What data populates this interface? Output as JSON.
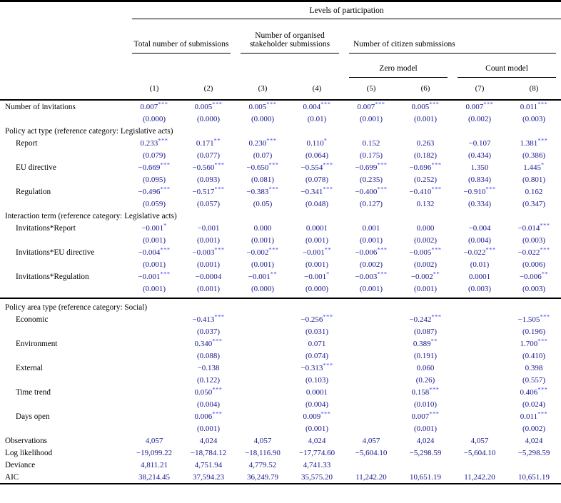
{
  "header": {
    "top_title": "Levels of participation",
    "groups": [
      {
        "label": "Total number of submissions"
      },
      {
        "label": "Number of organised stakeholder submissions"
      },
      {
        "label": "Number of citizen submissions"
      }
    ],
    "subgroups": [
      {
        "label": "Zero model"
      },
      {
        "label": "Count model"
      }
    ],
    "column_numbers": [
      "(1)",
      "(2)",
      "(3)",
      "(4)",
      "(5)",
      "(6)",
      "(7)",
      "(8)"
    ]
  },
  "colors": {
    "value_text": "#15158e",
    "stars": "#4343ff",
    "label_text": "#000000",
    "rule": "#000000"
  },
  "rows": [
    {
      "type": "coef",
      "label": "Number of invitations",
      "indent": false,
      "cells": [
        {
          "v": "0.007",
          "s": "***"
        },
        {
          "v": "0.005",
          "s": "***"
        },
        {
          "v": "0.005",
          "s": "***"
        },
        {
          "v": "0.004",
          "s": "***"
        },
        {
          "v": "0.007",
          "s": "***"
        },
        {
          "v": "0.005",
          "s": "***"
        },
        {
          "v": "0.007",
          "s": "***"
        },
        {
          "v": "0.011",
          "s": "***"
        }
      ]
    },
    {
      "type": "se",
      "cells": [
        "(0.000)",
        "(0.000)",
        "(0.000)",
        "(0.01)",
        "(0.001)",
        "(0.001)",
        "(0.002)",
        "(0.003)"
      ]
    },
    {
      "type": "section",
      "label": "Policy act type (reference category: Legislative acts)"
    },
    {
      "type": "coef",
      "label": "Report",
      "indent": true,
      "cells": [
        {
          "v": "0.233",
          "s": "***"
        },
        {
          "v": "0.171",
          "s": "**"
        },
        {
          "v": "0.230",
          "s": "***"
        },
        {
          "v": "0.110",
          "s": "*"
        },
        {
          "v": "0.152"
        },
        {
          "v": "0.263"
        },
        {
          "v": "−0.107"
        },
        {
          "v": "1.381",
          "s": "***"
        }
      ]
    },
    {
      "type": "se",
      "cells": [
        "(0.079)",
        "(0.077)",
        "(0.07)",
        "(0.064)",
        "(0.175)",
        "(0.182)",
        "(0.434)",
        "(0.386)"
      ]
    },
    {
      "type": "coef",
      "label": "EU directive",
      "indent": true,
      "cells": [
        {
          "v": "−0.669",
          "s": "***"
        },
        {
          "v": "−0.560",
          "s": "***"
        },
        {
          "v": "−0.650",
          "s": "***"
        },
        {
          "v": "−0.554",
          "s": "***"
        },
        {
          "v": "−0.699",
          "s": "***"
        },
        {
          "v": "−0.696",
          "s": "***"
        },
        {
          "v": "1.350"
        },
        {
          "v": "1.445",
          "s": "*"
        }
      ]
    },
    {
      "type": "se",
      "cells": [
        "(0.095)",
        "(0.093)",
        "(0.081)",
        "(0.078)",
        "(0.235)",
        "(0.252)",
        "(0.834)",
        "(0.801)"
      ]
    },
    {
      "type": "coef",
      "label": "Regulation",
      "indent": true,
      "cells": [
        {
          "v": "−0.496",
          "s": "***"
        },
        {
          "v": "−0.517",
          "s": "***"
        },
        {
          "v": "−0.383",
          "s": "***"
        },
        {
          "v": "−0.341",
          "s": "***"
        },
        {
          "v": "−0.400",
          "s": "***"
        },
        {
          "v": "−0.410",
          "s": "***"
        },
        {
          "v": "−0.910",
          "s": "***"
        },
        {
          "v": "0.162"
        }
      ]
    },
    {
      "type": "se",
      "cells": [
        "(0.059)",
        "(0.057)",
        "(0.05)",
        "(0.048)",
        "(0.127)",
        "0.132",
        "(0.334)",
        "(0.347)"
      ]
    },
    {
      "type": "section",
      "label": "Interaction term (reference category: Legislative acts)"
    },
    {
      "type": "coef",
      "label": "Invitations*Report",
      "indent": true,
      "cells": [
        {
          "v": "−0.001",
          "s": "*"
        },
        {
          "v": "−0.001"
        },
        {
          "v": "0.000"
        },
        {
          "v": "0.0001"
        },
        {
          "v": "0.001"
        },
        {
          "v": "0.000"
        },
        {
          "v": "−0.004"
        },
        {
          "v": "−0.014",
          "s": "***"
        }
      ]
    },
    {
      "type": "se",
      "cells": [
        "(0.001)",
        "(0.001)",
        "(0.001)",
        "(0.001)",
        "(0.001)",
        "(0.002)",
        "(0.004)",
        "(0.003)"
      ]
    },
    {
      "type": "coef",
      "label": "Invitations*EU directive",
      "indent": true,
      "cells": [
        {
          "v": "−0.004",
          "s": "***"
        },
        {
          "v": "−0.003",
          "s": "***"
        },
        {
          "v": "−0.002",
          "s": "***"
        },
        {
          "v": "−0.001",
          "s": "**"
        },
        {
          "v": "−0.006",
          "s": "***"
        },
        {
          "v": "−0.005",
          "s": "***"
        },
        {
          "v": "−0.022",
          "s": "***"
        },
        {
          "v": "−0.022",
          "s": "***"
        }
      ]
    },
    {
      "type": "se",
      "cells": [
        "(0.001)",
        "(0.001)",
        "(0.001)",
        "(0.001)",
        "(0.002)",
        "(0.002)",
        "(0.01)",
        "(0.006)"
      ]
    },
    {
      "type": "coef",
      "label": "Invitations*Regulation",
      "indent": true,
      "cells": [
        {
          "v": "−0.001",
          "s": "***"
        },
        {
          "v": "−0.0004"
        },
        {
          "v": "−0.001",
          "s": "**"
        },
        {
          "v": "−0.001",
          "s": "*"
        },
        {
          "v": "−0.003",
          "s": "***"
        },
        {
          "v": "−0.002",
          "s": "**"
        },
        {
          "v": "0.0001"
        },
        {
          "v": "−0.006",
          "s": "**"
        }
      ]
    },
    {
      "type": "se",
      "cells": [
        "(0.001)",
        "(0.001)",
        "(0.000)",
        "(0.000)",
        "(0.001)",
        "(0.001)",
        "(0.003)",
        "(0.003)"
      ]
    },
    {
      "type": "rule"
    },
    {
      "type": "section",
      "label": "Policy area type (reference category: Social)"
    },
    {
      "type": "coef",
      "label": "Economic",
      "indent": true,
      "cells": [
        "",
        {
          "v": "−0.413",
          "s": "***"
        },
        "",
        {
          "v": "−0.256",
          "s": "***"
        },
        "",
        {
          "v": "−0.242",
          "s": "***"
        },
        "",
        {
          "v": "−1.505",
          "s": "***"
        }
      ]
    },
    {
      "type": "se",
      "cells": [
        "",
        "(0.037)",
        "",
        "(0.031)",
        "",
        "(0.087)",
        "",
        "(0.196)"
      ]
    },
    {
      "type": "coef",
      "label": "Environment",
      "indent": true,
      "cells": [
        "",
        {
          "v": "0.340",
          "s": "***"
        },
        "",
        {
          "v": "0.071"
        },
        "",
        {
          "v": "0.389",
          "s": "**"
        },
        "",
        {
          "v": "1.700",
          "s": "***"
        }
      ]
    },
    {
      "type": "se",
      "cells": [
        "",
        "(0.088)",
        "",
        "(0.074)",
        "",
        "(0.191)",
        "",
        "(0.410)"
      ]
    },
    {
      "type": "coef",
      "label": "External",
      "indent": true,
      "cells": [
        "",
        {
          "v": "−0.138"
        },
        "",
        {
          "v": "−0.313",
          "s": "***"
        },
        "",
        {
          "v": "0.060"
        },
        "",
        {
          "v": "0.398"
        }
      ]
    },
    {
      "type": "se",
      "cells": [
        "",
        "(0.122)",
        "",
        "(0.103)",
        "",
        "(0.26)",
        "",
        "(0.557)"
      ]
    },
    {
      "type": "coef",
      "label": "Time trend",
      "indent": true,
      "cells": [
        "",
        {
          "v": "0.050",
          "s": "***"
        },
        "",
        {
          "v": "0.0001"
        },
        "",
        {
          "v": "0.158",
          "s": "***"
        },
        "",
        {
          "v": "0.406",
          "s": "***"
        }
      ]
    },
    {
      "type": "se",
      "cells": [
        "",
        "(0.004)",
        "",
        "(0.004)",
        "",
        "(0.010)",
        "",
        "(0.024)"
      ]
    },
    {
      "type": "coef",
      "label": "Days open",
      "indent": true,
      "cells": [
        "",
        {
          "v": "0.006",
          "s": "***"
        },
        "",
        {
          "v": "0.009",
          "s": "***"
        },
        "",
        {
          "v": "0.007",
          "s": "***"
        },
        "",
        {
          "v": "0.011",
          "s": "***"
        }
      ]
    },
    {
      "type": "se",
      "cells": [
        "",
        "(0.001)",
        "",
        "(0.001)",
        "",
        "(0.001)",
        "",
        "(0.002)"
      ]
    },
    {
      "type": "stat",
      "label": "Observations",
      "cells": [
        "4,057",
        "4,024",
        "4,057",
        "4,024",
        "4,057",
        "4,024",
        "4,057",
        "4,024"
      ]
    },
    {
      "type": "stat",
      "label": "Log likelihood",
      "cells": [
        "−19,099.22",
        "−18,784.12",
        "−18,116.90",
        "−17,774.60",
        "−5,604.10",
        "−5,298.59",
        "−5,604.10",
        "−5,298.59"
      ]
    },
    {
      "type": "stat",
      "label": "Deviance",
      "cells": [
        "4,811.21",
        "4,751.94",
        "4,779.52",
        "4,741.33",
        "",
        "",
        "",
        ""
      ]
    },
    {
      "type": "stat",
      "label": "AIC",
      "cells": [
        "38,214.45",
        "37,594.23",
        "36,249.79",
        "35,575.20",
        "11,242.20",
        "10,651.19",
        "11,242.20",
        "10,651.19"
      ]
    }
  ]
}
